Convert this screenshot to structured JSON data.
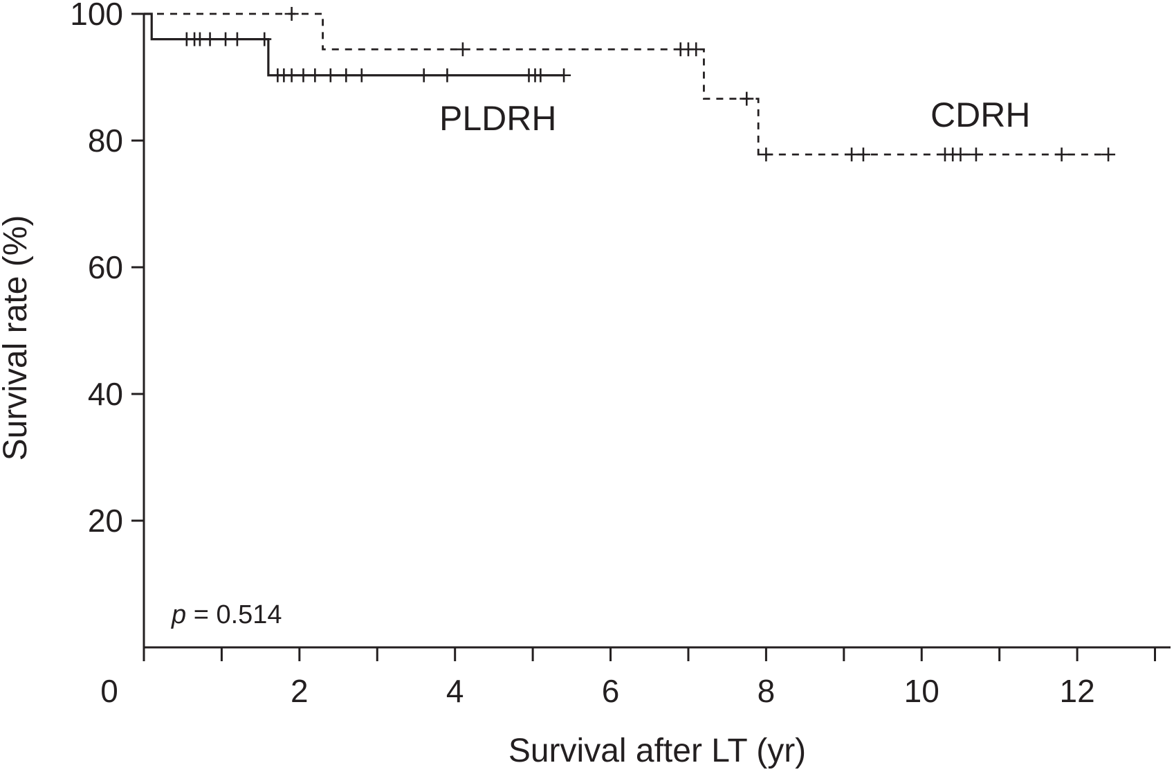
{
  "chart_data": {
    "type": "line",
    "subtype": "kaplan-meier",
    "title": "",
    "xlabel": "Survival after LT (yr)",
    "ylabel": "Survival rate (%)",
    "xlim": [
      0,
      13.2
    ],
    "ylim": [
      0,
      100
    ],
    "xticks": [
      0,
      2,
      4,
      6,
      8,
      10,
      12
    ],
    "yticks": [
      20,
      40,
      60,
      80,
      100
    ],
    "grid": false,
    "annotation": {
      "italic": "p",
      "text": " = 0.514"
    },
    "series": [
      {
        "name": "PLDRH",
        "style": "solid",
        "steps": [
          [
            0,
            100
          ],
          [
            0.1,
            96
          ],
          [
            1.6,
            90.3
          ]
        ],
        "end_x": 5.4,
        "censored": [
          0.55,
          0.65,
          0.72,
          0.85,
          1.05,
          1.2,
          1.55,
          1.72,
          1.8,
          1.9,
          2.05,
          2.2,
          2.4,
          2.6,
          2.8,
          3.6,
          3.9,
          4.95,
          5.03,
          5.1,
          5.4
        ]
      },
      {
        "name": "CDRH",
        "style": "dashed",
        "steps": [
          [
            0,
            100
          ],
          [
            2.3,
            94.4
          ],
          [
            7.2,
            86.6
          ],
          [
            7.9,
            77.8
          ]
        ],
        "end_x": 12.4,
        "censored": [
          1.9,
          4.1,
          6.9,
          7.0,
          7.1,
          7.75,
          8.0,
          9.1,
          9.25,
          10.3,
          10.4,
          10.5,
          10.7,
          11.8,
          12.4
        ]
      }
    ]
  }
}
